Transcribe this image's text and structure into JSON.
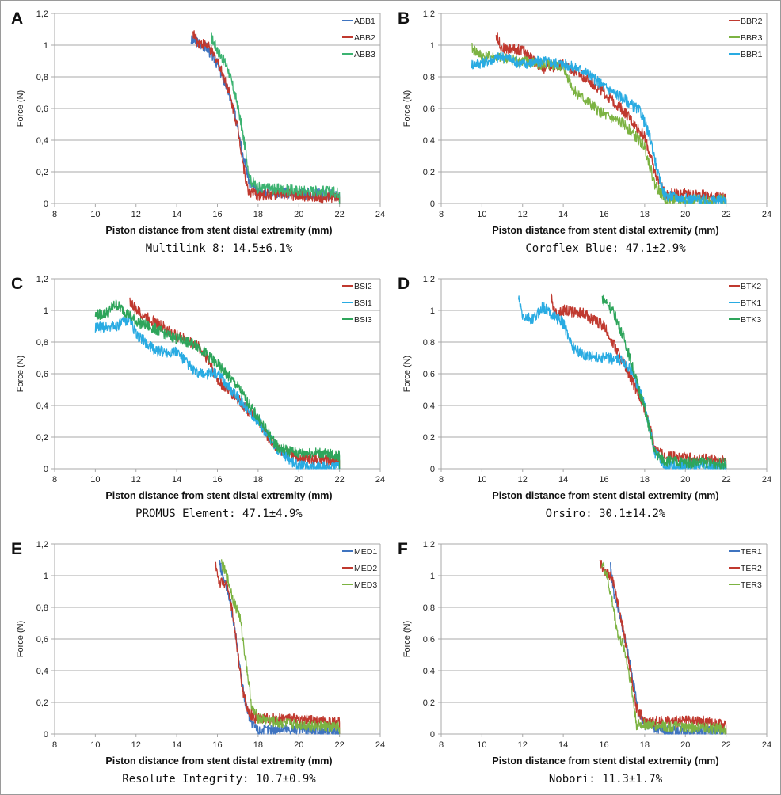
{
  "figure": {
    "panels": [
      {
        "letter": "A",
        "caption": "Multilink 8: 14.5±6.1%"
      },
      {
        "letter": "B",
        "caption": "Coroflex Blue: 47.1±2.9%"
      },
      {
        "letter": "C",
        "caption": "PROMUS Element: 47.1±4.9%"
      },
      {
        "letter": "D",
        "caption": "Orsiro: 30.1±14.2%"
      },
      {
        "letter": "E",
        "caption": "Resolute Integrity: 10.7±0.9%"
      },
      {
        "letter": "F",
        "caption": "Nobori: 11.3±1.7%"
      }
    ]
  },
  "chart_data": [
    {
      "type": "line",
      "panel": "A",
      "title": "",
      "caption": "Multilink 8: 14.5±6.1%",
      "xlabel": "Piston distance from stent distal extremity (mm)",
      "ylabel": "Force (N)",
      "xlim": [
        8,
        24
      ],
      "ylim": [
        0,
        1.2
      ],
      "xticks": [
        "8",
        "10",
        "12",
        "14",
        "16",
        "18",
        "20",
        "22",
        "24"
      ],
      "yticks": [
        "0",
        "0,2",
        "0,4",
        "0,6",
        "0,8",
        "1",
        "1,2"
      ],
      "grid": "horizontal",
      "legend_position": "top-right",
      "series": [
        {
          "name": "ABB1",
          "color": "#3f74c0",
          "x": [
            14.7,
            15.0,
            15.5,
            16.0,
            16.5,
            17.0,
            17.3,
            17.6,
            18.0,
            19.0,
            20.0,
            21.0,
            22.0
          ],
          "y": [
            1.03,
            1.02,
            0.98,
            0.88,
            0.72,
            0.5,
            0.28,
            0.12,
            0.07,
            0.07,
            0.06,
            0.06,
            0.05
          ]
        },
        {
          "name": "ABB2",
          "color": "#c0392f",
          "x": [
            14.8,
            15.0,
            15.5,
            16.0,
            16.5,
            17.0,
            17.3,
            17.5,
            18.0,
            19.0,
            20.0,
            21.0,
            22.0
          ],
          "y": [
            1.08,
            1.02,
            1.0,
            0.9,
            0.74,
            0.48,
            0.22,
            0.08,
            0.05,
            0.06,
            0.05,
            0.04,
            0.04
          ]
        },
        {
          "name": "ABB3",
          "color": "#3cb371",
          "x": [
            15.7,
            16.0,
            16.5,
            17.0,
            17.3,
            17.6,
            18.0,
            19.0,
            20.0,
            21.0,
            22.0
          ],
          "y": [
            1.05,
            0.97,
            0.86,
            0.62,
            0.4,
            0.15,
            0.1,
            0.09,
            0.08,
            0.08,
            0.07
          ]
        }
      ]
    },
    {
      "type": "line",
      "panel": "B",
      "caption": "Coroflex Blue: 47.1±2.9%",
      "xlabel": "Piston distance from stent distal extremity (mm)",
      "ylabel": "Force (N)",
      "xlim": [
        8,
        24
      ],
      "ylim": [
        0,
        1.2
      ],
      "xticks": [
        "8",
        "10",
        "12",
        "14",
        "16",
        "18",
        "20",
        "22",
        "24"
      ],
      "yticks": [
        "0",
        "0,2",
        "0,4",
        "0,6",
        "0,8",
        "1",
        "1,2"
      ],
      "grid": "horizontal",
      "legend_position": "top-right",
      "series": [
        {
          "name": "BBR2",
          "color": "#c0392f",
          "x": [
            10.7,
            11.0,
            12.0,
            13.0,
            14.0,
            15.0,
            16.0,
            17.0,
            18.0,
            18.5,
            19.0,
            20.0,
            21.0,
            22.0
          ],
          "y": [
            1.06,
            0.98,
            0.97,
            0.85,
            0.88,
            0.8,
            0.7,
            0.58,
            0.42,
            0.2,
            0.06,
            0.06,
            0.05,
            0.03
          ]
        },
        {
          "name": "BBR3",
          "color": "#7cb342",
          "x": [
            9.5,
            10.0,
            11.0,
            12.0,
            13.0,
            14.0,
            14.5,
            15.0,
            16.0,
            17.0,
            18.0,
            18.5,
            19.0,
            20.0,
            21.0,
            22.0
          ],
          "y": [
            0.98,
            0.93,
            0.92,
            0.9,
            0.88,
            0.86,
            0.72,
            0.66,
            0.56,
            0.5,
            0.36,
            0.12,
            0.03,
            0.02,
            0.02,
            0.02
          ]
        },
        {
          "name": "BBR1",
          "color": "#29abe2",
          "x": [
            9.5,
            10.0,
            11.0,
            12.0,
            13.0,
            14.0,
            15.0,
            16.0,
            17.0,
            17.8,
            18.3,
            18.7,
            19.0,
            20.0,
            21.0,
            22.0
          ],
          "y": [
            0.88,
            0.89,
            0.93,
            0.88,
            0.9,
            0.88,
            0.84,
            0.74,
            0.66,
            0.58,
            0.4,
            0.16,
            0.05,
            0.03,
            0.02,
            0.02
          ]
        }
      ]
    },
    {
      "type": "line",
      "panel": "C",
      "caption": "PROMUS Element: 47.1±4.9%",
      "xlabel": "Piston distance from stent distal extremity (mm)",
      "ylabel": "Force (N)",
      "xlim": [
        8,
        24
      ],
      "ylim": [
        0,
        1.2
      ],
      "xticks": [
        "8",
        "10",
        "12",
        "14",
        "16",
        "18",
        "20",
        "22",
        "24"
      ],
      "yticks": [
        "0",
        "0,2",
        "0,4",
        "0,6",
        "0,8",
        "1",
        "1,2"
      ],
      "grid": "horizontal",
      "legend_position": "top-right",
      "series": [
        {
          "name": "BSI2",
          "color": "#c0392f",
          "x": [
            11.7,
            12.0,
            13.0,
            14.0,
            15.0,
            15.5,
            16.0,
            17.0,
            18.0,
            18.5,
            19.0,
            20.0,
            21.0,
            22.0
          ],
          "y": [
            1.06,
            1.0,
            0.92,
            0.84,
            0.78,
            0.7,
            0.56,
            0.44,
            0.3,
            0.2,
            0.12,
            0.07,
            0.06,
            0.05
          ]
        },
        {
          "name": "BSI1",
          "color": "#29abe2",
          "x": [
            10.0,
            11.0,
            11.7,
            12.0,
            13.0,
            14.0,
            15.0,
            16.0,
            17.0,
            18.0,
            19.0,
            19.8,
            20.0,
            21.0,
            22.0
          ],
          "y": [
            0.89,
            0.9,
            0.95,
            0.85,
            0.74,
            0.74,
            0.6,
            0.6,
            0.45,
            0.3,
            0.12,
            0.03,
            0.02,
            0.01,
            0.01
          ]
        },
        {
          "name": "BSI3",
          "color": "#2ea55b",
          "x": [
            10.0,
            10.5,
            11.0,
            11.5,
            12.0,
            13.0,
            14.0,
            15.0,
            16.0,
            17.0,
            18.0,
            19.0,
            20.0,
            21.0,
            22.0
          ],
          "y": [
            0.97,
            0.98,
            1.04,
            0.99,
            0.93,
            0.88,
            0.82,
            0.78,
            0.66,
            0.52,
            0.32,
            0.13,
            0.1,
            0.1,
            0.08
          ]
        }
      ]
    },
    {
      "type": "line",
      "panel": "D",
      "caption": "Orsiro: 30.1±14.2%",
      "xlabel": "Piston distance from stent distal extremity (mm)",
      "ylabel": "Force (N)",
      "xlim": [
        8,
        24
      ],
      "ylim": [
        0,
        1.2
      ],
      "xticks": [
        "8",
        "10",
        "12",
        "14",
        "16",
        "18",
        "20",
        "22",
        "24"
      ],
      "yticks": [
        "0",
        "0,2",
        "0,4",
        "0,6",
        "0,8",
        "1",
        "1,2"
      ],
      "grid": "horizontal",
      "legend_position": "top-right",
      "series": [
        {
          "name": "BTK2",
          "color": "#c0392f",
          "x": [
            13.4,
            13.6,
            14.0,
            15.0,
            16.0,
            16.5,
            17.0,
            17.5,
            18.0,
            18.5,
            19.0,
            20.0,
            21.0,
            22.0
          ],
          "y": [
            1.08,
            0.98,
            1.0,
            0.98,
            0.9,
            0.78,
            0.66,
            0.52,
            0.38,
            0.14,
            0.08,
            0.07,
            0.06,
            0.05
          ]
        },
        {
          "name": "BTK1",
          "color": "#29abe2",
          "x": [
            11.8,
            12.0,
            12.5,
            13.0,
            14.0,
            14.5,
            15.0,
            16.0,
            17.0,
            17.5,
            18.0,
            18.5,
            19.0,
            20.0,
            21.0,
            22.0
          ],
          "y": [
            1.08,
            0.96,
            0.94,
            1.02,
            0.92,
            0.76,
            0.72,
            0.7,
            0.68,
            0.58,
            0.4,
            0.1,
            0.02,
            0.02,
            0.01,
            0.01
          ]
        },
        {
          "name": "BTK3",
          "color": "#2ea55b",
          "x": [
            15.9,
            16.2,
            16.5,
            17.0,
            17.5,
            18.0,
            18.5,
            19.0,
            20.0,
            21.0,
            22.0
          ],
          "y": [
            1.08,
            1.04,
            0.98,
            0.82,
            0.6,
            0.38,
            0.1,
            0.05,
            0.04,
            0.04,
            0.03
          ]
        }
      ]
    },
    {
      "type": "line",
      "panel": "E",
      "caption": "Resolute Integrity: 10.7±0.9%",
      "xlabel": "Piston distance from stent distal extremity (mm)",
      "ylabel": "Force (N)",
      "xlim": [
        8,
        24
      ],
      "ylim": [
        0,
        1.2
      ],
      "xticks": [
        "8",
        "10",
        "12",
        "14",
        "16",
        "18",
        "20",
        "22",
        "24"
      ],
      "yticks": [
        "0",
        "0,2",
        "0,4",
        "0,6",
        "0,8",
        "1",
        "1,2"
      ],
      "grid": "horizontal",
      "legend_position": "top-right",
      "series": [
        {
          "name": "MED1",
          "color": "#3f74c0",
          "x": [
            16.1,
            16.3,
            16.6,
            16.9,
            17.1,
            17.4,
            17.7,
            18.0,
            19.0,
            20.0,
            21.0,
            22.0
          ],
          "y": [
            1.08,
            0.98,
            0.86,
            0.62,
            0.42,
            0.18,
            0.06,
            0.02,
            0.03,
            0.03,
            0.02,
            0.01
          ]
        },
        {
          "name": "MED2",
          "color": "#c0392f",
          "x": [
            15.9,
            16.1,
            16.4,
            16.7,
            17.0,
            17.2,
            17.5,
            17.9,
            18.5,
            19.0,
            20.0,
            21.0,
            22.0
          ],
          "y": [
            1.08,
            0.95,
            0.96,
            0.8,
            0.52,
            0.3,
            0.14,
            0.1,
            0.1,
            0.1,
            0.09,
            0.08,
            0.07
          ]
        },
        {
          "name": "MED3",
          "color": "#7cb342",
          "x": [
            16.2,
            16.5,
            16.8,
            17.1,
            17.4,
            17.7,
            18.0,
            19.0,
            20.0,
            21.0,
            22.0
          ],
          "y": [
            1.08,
            0.98,
            0.84,
            0.74,
            0.46,
            0.16,
            0.1,
            0.07,
            0.06,
            0.05,
            0.04
          ]
        }
      ]
    },
    {
      "type": "line",
      "panel": "F",
      "caption": "Nobori: 11.3±1.7%",
      "xlabel": "Piston distance from stent distal extremity (mm)",
      "ylabel": "Force (N)",
      "xlim": [
        8,
        24
      ],
      "ylim": [
        0,
        1.2
      ],
      "xticks": [
        "8",
        "10",
        "12",
        "14",
        "16",
        "18",
        "20",
        "22",
        "24"
      ],
      "yticks": [
        "0",
        "0,2",
        "0,4",
        "0,6",
        "0,8",
        "1",
        "1,2"
      ],
      "grid": "horizontal",
      "legend_position": "top-right",
      "series": [
        {
          "name": "TER1",
          "color": "#3f74c0",
          "x": [
            16.3,
            16.5,
            16.8,
            17.1,
            17.4,
            17.7,
            18.0,
            19.0,
            20.0,
            21.0,
            22.0
          ],
          "y": [
            1.08,
            0.88,
            0.74,
            0.56,
            0.36,
            0.14,
            0.06,
            0.02,
            0.02,
            0.02,
            0.01
          ]
        },
        {
          "name": "TER2",
          "color": "#c0392f",
          "x": [
            15.8,
            16.0,
            16.4,
            16.7,
            17.0,
            17.3,
            17.6,
            18.0,
            19.0,
            20.0,
            21.0,
            22.0
          ],
          "y": [
            1.08,
            1.04,
            0.98,
            0.82,
            0.62,
            0.4,
            0.16,
            0.08,
            0.08,
            0.08,
            0.08,
            0.05
          ]
        },
        {
          "name": "TER3",
          "color": "#7cb342",
          "x": [
            15.9,
            16.1,
            16.4,
            16.7,
            17.0,
            17.3,
            17.6,
            18.0,
            19.0,
            20.0,
            21.0,
            22.0
          ],
          "y": [
            1.08,
            1.02,
            0.84,
            0.62,
            0.54,
            0.34,
            0.06,
            0.06,
            0.05,
            0.04,
            0.04,
            0.03
          ]
        }
      ]
    }
  ]
}
